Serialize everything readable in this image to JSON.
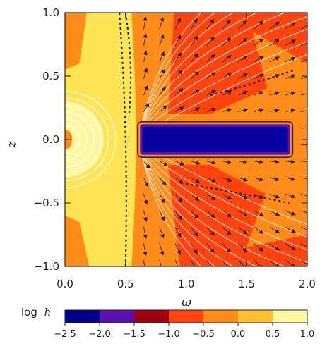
{
  "chart_data": {
    "type": "heatmap",
    "title": "",
    "xlabel": "ϖ",
    "ylabel": "z",
    "xlim": [
      0.0,
      2.0
    ],
    "ylim": [
      -1.0,
      1.0
    ],
    "x_ticks": [
      "0.0",
      "0.5",
      "1.0",
      "1.5",
      "2.0"
    ],
    "y_ticks": [
      "-1.0",
      "-0.5",
      "0.0",
      "0.5",
      "1.0"
    ],
    "overlays": [
      "velocity-arrows",
      "white-contours",
      "dashed-contours",
      "torus-outline"
    ],
    "colorbar": {
      "title": "log h",
      "title_prefix": "log",
      "title_var": "h",
      "ticks": [
        "-2.5",
        "-2.0",
        "-1.5",
        "-1.0",
        "-0.5",
        "0.0",
        "0.5",
        "1.0"
      ],
      "bins": [
        {
          "from": -2.5,
          "to": -2.0,
          "color": "#000088"
        },
        {
          "from": -2.0,
          "to": -1.5,
          "color": "#5a10b0"
        },
        {
          "from": -1.5,
          "to": -1.0,
          "color": "#a00010"
        },
        {
          "from": -1.0,
          "to": -0.5,
          "color": "#ff4410"
        },
        {
          "from": -0.5,
          "to": 0.0,
          "color": "#ff8c1a"
        },
        {
          "from": 0.0,
          "to": 0.5,
          "color": "#ffc030"
        },
        {
          "from": 0.5,
          "to": 1.0,
          "color": "#fff7a0"
        }
      ]
    },
    "regions": [
      {
        "name": "inner-sphere",
        "level": 0.75,
        "color": "#fff7a0"
      },
      {
        "name": "inner-band",
        "level": 0.4,
        "color": "#ffe455"
      },
      {
        "name": "outer-wind",
        "level": -0.25,
        "color": "#ff8c1a"
      },
      {
        "name": "dense-streams",
        "level": -0.75,
        "color": "#ff4410"
      },
      {
        "name": "torus",
        "level": -2.3,
        "color": "#0a00a0"
      }
    ]
  }
}
